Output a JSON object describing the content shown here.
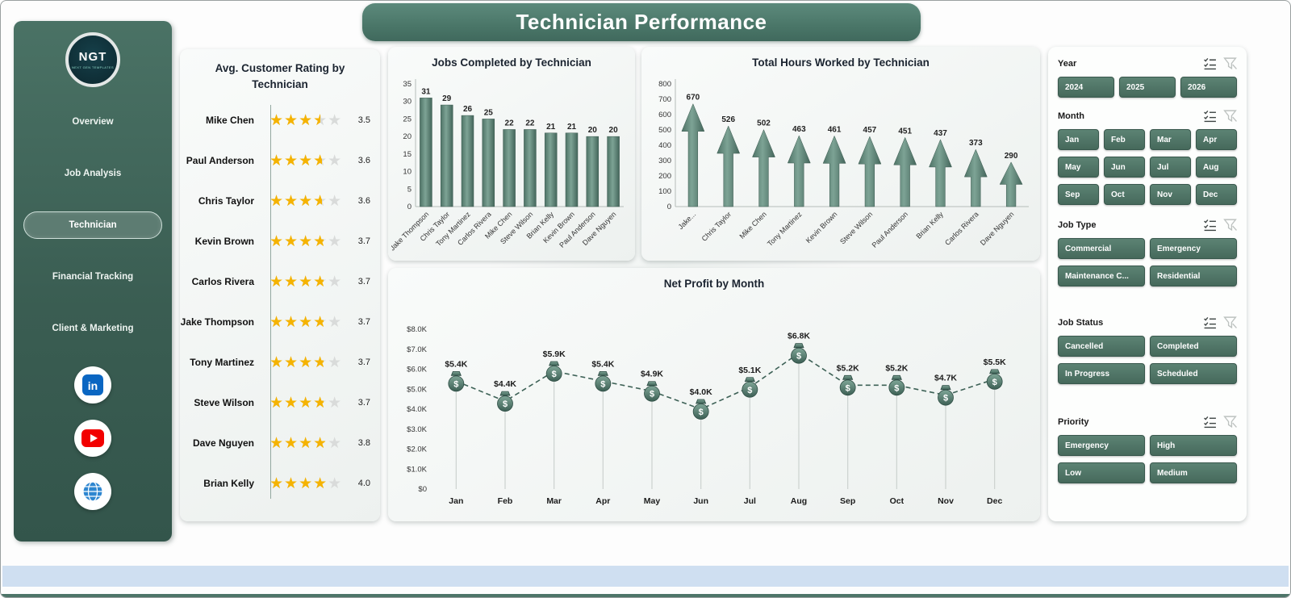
{
  "title": "Technician Performance",
  "sidebar": {
    "logo_text": "NGT",
    "logo_subtext": "NEXT GEN TEMPLATES",
    "items": [
      {
        "label": "Overview",
        "active": false
      },
      {
        "label": "Job Analysis",
        "active": false
      },
      {
        "label": "Technician",
        "active": true
      },
      {
        "label": "Financial Tracking",
        "active": false
      },
      {
        "label": "Client & Marketing",
        "active": false
      }
    ],
    "social": [
      "linkedin",
      "youtube",
      "globe"
    ]
  },
  "rating_panel": {
    "title": "Avg. Customer Rating by Technician",
    "max_stars": 5,
    "items": [
      {
        "name": "Mike Chen",
        "rating": 3.5,
        "display": "3.5"
      },
      {
        "name": "Paul Anderson",
        "rating": 3.6,
        "display": "3.6"
      },
      {
        "name": "Chris Taylor",
        "rating": 3.6,
        "display": "3.6"
      },
      {
        "name": "Kevin Brown",
        "rating": 3.7,
        "display": "3.7"
      },
      {
        "name": "Carlos Rivera",
        "rating": 3.7,
        "display": "3.7"
      },
      {
        "name": "Jake Thompson",
        "rating": 3.7,
        "display": "3.7"
      },
      {
        "name": "Tony Martinez",
        "rating": 3.7,
        "display": "3.7"
      },
      {
        "name": "Steve Wilson",
        "rating": 3.7,
        "display": "3.7"
      },
      {
        "name": "Dave Nguyen",
        "rating": 3.8,
        "display": "3.8"
      },
      {
        "name": "Brian Kelly",
        "rating": 4.0,
        "display": "4.0"
      }
    ]
  },
  "chart_data": [
    {
      "id": "jobs",
      "type": "bar",
      "title": "Jobs Completed by Technician",
      "categories": [
        "Jake Thompson",
        "Chris Taylor",
        "Tony Martinez",
        "Carlos Rivera",
        "Mike Chen",
        "Steve Wilson",
        "Brian Kelly",
        "Kevin Brown",
        "Paul Anderson",
        "Dave Nguyen"
      ],
      "values": [
        31,
        29,
        26,
        25,
        22,
        22,
        21,
        21,
        20,
        20
      ],
      "ylim": [
        0,
        35
      ],
      "ytick_step": 5,
      "grid": false,
      "legend": "none"
    },
    {
      "id": "hours",
      "type": "bar",
      "variant": "arrow",
      "title": "Total Hours Worked by Technician",
      "categories": [
        "Jake...",
        "Chris Taylor",
        "Mike Chen",
        "Tony Martinez",
        "Kevin Brown",
        "Steve Wilson",
        "Paul Anderson",
        "Brian Kelly",
        "Carlos Rivera",
        "Dave Nguyen"
      ],
      "values": [
        670,
        526,
        502,
        463,
        461,
        457,
        451,
        437,
        373,
        290
      ],
      "ylim": [
        0,
        800
      ],
      "ytick_step": 100,
      "grid": false,
      "legend": "none"
    },
    {
      "id": "profit",
      "type": "line",
      "title": "Net Profit by Month",
      "categories": [
        "Jan",
        "Feb",
        "Mar",
        "Apr",
        "May",
        "Jun",
        "Jul",
        "Aug",
        "Sep",
        "Oct",
        "Nov",
        "Dec"
      ],
      "values": [
        5400,
        4400,
        5900,
        5400,
        4900,
        4000,
        5100,
        6800,
        5200,
        5200,
        4700,
        5500
      ],
      "labels": [
        "$5.4K",
        "$4.4K",
        "$5.9K",
        "$5.4K",
        "$4.9K",
        "$4.0K",
        "$5.1K",
        "$6.8K",
        "$5.2K",
        "$5.2K",
        "$4.7K",
        "$5.5K"
      ],
      "ylim": [
        0,
        8000
      ],
      "ytick_step": 1000,
      "ytick_labels": [
        "$0",
        "$1.0K",
        "$2.0K",
        "$3.0K",
        "$4.0K",
        "$5.0K",
        "$6.0K",
        "$7.0K",
        "$8.0K"
      ],
      "grid": false,
      "legend": "none"
    }
  ],
  "filters": {
    "groups": [
      {
        "label": "Year",
        "cols": 3,
        "options": [
          "2024",
          "2025",
          "2026"
        ]
      },
      {
        "label": "Month",
        "cols": 4,
        "options": [
          "Jan",
          "Feb",
          "Mar",
          "Apr",
          "May",
          "Jun",
          "Jul",
          "Aug",
          "Sep",
          "Oct",
          "Nov",
          "Dec"
        ]
      },
      {
        "label": "Job Type",
        "cols": 2,
        "options": [
          "Commercial",
          "Emergency",
          "Maintenance C...",
          "Residential"
        ]
      },
      {
        "label": "Job Status",
        "cols": 2,
        "options": [
          "Cancelled",
          "Completed",
          "In Progress",
          "Scheduled"
        ]
      },
      {
        "label": "Priority",
        "cols": 2,
        "options": [
          "Emergency",
          "High",
          "Low",
          "Medium"
        ]
      }
    ]
  }
}
